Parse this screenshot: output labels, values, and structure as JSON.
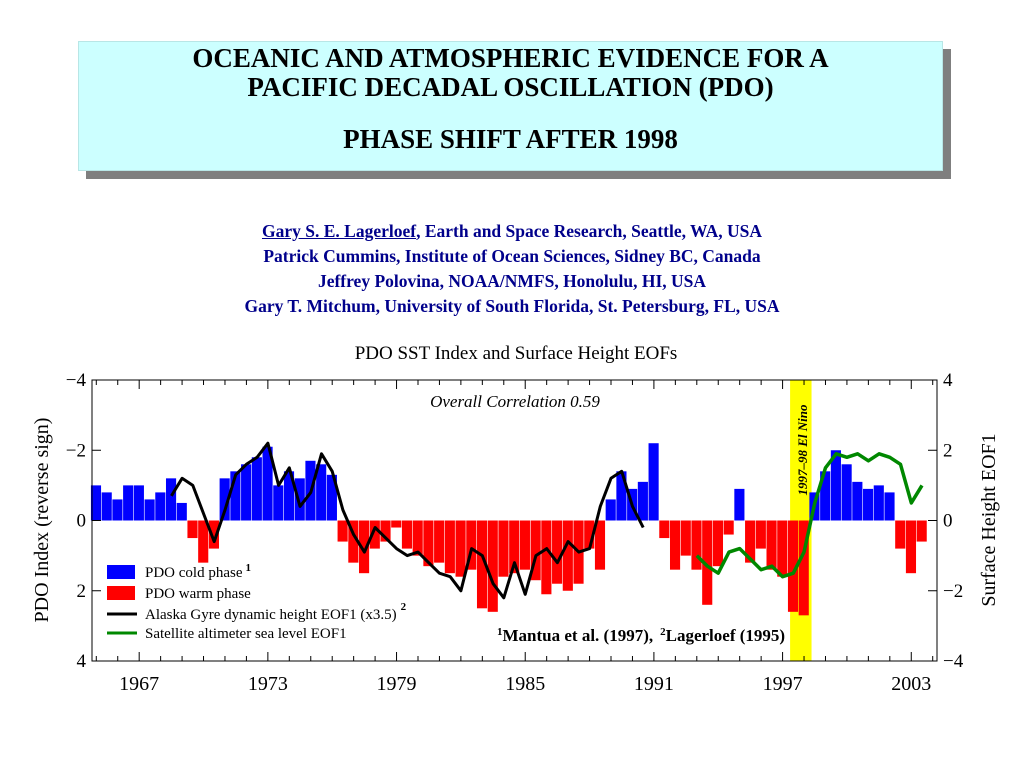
{
  "slide": {
    "title_line1": "OCEANIC AND ATMOSPHERIC EVIDENCE FOR A",
    "title_line2": "PACIFIC DECADAL OSCILLATION (PDO)",
    "subtitle": "PHASE SHIFT AFTER 1998",
    "authors": [
      {
        "name": "Gary S. E. Lagerloef",
        "affiliation": ", Earth and Space Research, Seattle, WA, USA"
      },
      {
        "name": "Patrick Cummins",
        "affiliation": ", Institute of Ocean Sciences, Sidney BC, Canada"
      },
      {
        "name": "Jeffrey Polovina",
        "affiliation": ", NOAA/NMFS, Honolulu, HI, USA"
      },
      {
        "name": "Gary T. Mitchum",
        "affiliation": ", University of South Florida, St. Petersburg, FL, USA"
      }
    ],
    "colors": {
      "title_bg": "#ccffff",
      "author_text": "#00008b",
      "cold": "#0000ff",
      "warm": "#ff0000",
      "gyre": "#000000",
      "altimeter": "#008800",
      "el_nino": "#ffff00"
    }
  },
  "chart_data": {
    "type": "bar",
    "title": "PDO SST Index and Surface Height EOFs",
    "ylabel_left": "PDO Index (reverse sign)",
    "ylabel_right": "Surface Height EOF1",
    "left_ticks": [
      "−4",
      "−2",
      "0",
      "2",
      "4"
    ],
    "right_ticks": [
      "4",
      "2",
      "0",
      "−2",
      "−4"
    ],
    "x_ticks": [
      "1967",
      "1973",
      "1979",
      "1985",
      "1991",
      "1997",
      "2003"
    ],
    "xlim": [
      1964.8,
      2004.2
    ],
    "ylim": [
      4,
      -4
    ],
    "annotation": "Overall Correlation 0.59",
    "el_nino": {
      "label": "1997–98 El Nino",
      "start": 1997.35,
      "end": 1998.35
    },
    "legend": {
      "position": "bottom-left",
      "entries": [
        {
          "label": "PDO cold phase",
          "sup": "1",
          "kind": "box",
          "color": "#0000ff"
        },
        {
          "label": "PDO warm phase",
          "sup": "",
          "kind": "box",
          "color": "#ff0000"
        },
        {
          "label": "Alaska Gyre dynamic height EOF1 (x3.5)",
          "sup": "2",
          "kind": "line",
          "color": "#000000"
        },
        {
          "label": "Satellite altimeter sea level EOF1",
          "sup": "",
          "kind": "line",
          "color": "#008800"
        }
      ]
    },
    "references": {
      "ref1_sup": "1",
      "ref1": "Mantua et al. (1997),",
      "ref2_sup": "2",
      "ref2": "Lagerloef (1995)"
    },
    "pdo_index": {
      "x": [
        1965.0,
        1965.5,
        1966.0,
        1966.5,
        1967.0,
        1967.5,
        1968.0,
        1968.5,
        1969.0,
        1969.5,
        1970.0,
        1970.5,
        1971.0,
        1971.5,
        1972.0,
        1972.5,
        1973.0,
        1973.5,
        1974.0,
        1974.5,
        1975.0,
        1975.5,
        1976.0,
        1976.5,
        1977.0,
        1977.5,
        1978.0,
        1978.5,
        1979.0,
        1979.5,
        1980.0,
        1980.5,
        1981.0,
        1981.5,
        1982.0,
        1982.5,
        1983.0,
        1983.5,
        1984.0,
        1984.5,
        1985.0,
        1985.5,
        1986.0,
        1986.5,
        1987.0,
        1987.5,
        1988.0,
        1988.5,
        1989.0,
        1989.5,
        1990.0,
        1990.5,
        1991.0,
        1991.5,
        1992.0,
        1992.5,
        1993.0,
        1993.5,
        1994.0,
        1994.5,
        1995.0,
        1995.5,
        1996.0,
        1996.5,
        1997.0,
        1997.5,
        1998.0,
        1998.5,
        1999.0,
        1999.5,
        2000.0,
        2000.5,
        2001.0,
        2001.5,
        2002.0,
        2002.5,
        2003.0,
        2003.5
      ],
      "y": [
        -1.0,
        -0.8,
        -0.6,
        -1.0,
        -1.0,
        -0.6,
        -0.8,
        -1.2,
        -0.5,
        0.5,
        1.2,
        0.8,
        -1.2,
        -1.4,
        -1.6,
        -1.8,
        -2.1,
        -1.0,
        -1.4,
        -1.2,
        -1.7,
        -1.6,
        -1.3,
        0.6,
        1.2,
        1.5,
        0.8,
        0.6,
        0.2,
        0.8,
        1.0,
        1.3,
        1.2,
        1.5,
        1.6,
        1.4,
        2.5,
        2.6,
        1.6,
        1.5,
        1.4,
        1.7,
        2.1,
        1.8,
        2.0,
        1.8,
        0.8,
        1.4,
        -0.6,
        -1.4,
        -0.9,
        -1.1,
        -2.2,
        0.5,
        1.4,
        1.0,
        1.4,
        2.4,
        1.3,
        0.4,
        -0.9,
        1.2,
        0.8,
        1.4,
        1.6,
        2.6,
        2.7,
        -0.8,
        -1.4,
        -2.0,
        -1.6,
        -1.1,
        -0.9,
        -1.0,
        -0.8,
        0.8,
        1.5,
        0.6
      ]
    },
    "alaska_gyre_eof1": {
      "x": [
        1968.5,
        1969.0,
        1969.5,
        1970.0,
        1970.5,
        1971.0,
        1971.5,
        1972.0,
        1972.5,
        1973.0,
        1973.5,
        1974.0,
        1974.5,
        1975.0,
        1975.5,
        1976.0,
        1976.5,
        1977.0,
        1977.5,
        1978.0,
        1978.5,
        1979.0,
        1979.5,
        1980.0,
        1980.5,
        1981.0,
        1981.5,
        1982.0,
        1982.5,
        1983.0,
        1983.5,
        1984.0,
        1984.5,
        1985.0,
        1985.5,
        1986.0,
        1986.5,
        1987.0,
        1987.5,
        1988.0,
        1988.5,
        1989.0,
        1989.5,
        1990.0,
        1990.5
      ],
      "y": [
        -0.7,
        -1.2,
        -1.0,
        -0.2,
        0.6,
        -0.3,
        -1.3,
        -1.6,
        -1.8,
        -2.2,
        -1.0,
        -1.5,
        -0.4,
        -0.8,
        -1.9,
        -1.4,
        -0.3,
        0.4,
        0.9,
        0.2,
        0.5,
        0.8,
        1.0,
        0.9,
        1.2,
        1.5,
        1.6,
        2.0,
        0.8,
        1.0,
        1.8,
        2.2,
        1.2,
        2.1,
        1.0,
        0.8,
        1.2,
        0.6,
        0.9,
        0.8,
        -0.4,
        -1.2,
        -1.4,
        -0.4,
        0.2
      ]
    },
    "altimeter_eof1": {
      "x": [
        1993.0,
        1993.5,
        1994.0,
        1994.5,
        1995.0,
        1995.5,
        1996.0,
        1996.5,
        1997.0,
        1997.5,
        1998.0,
        1998.5,
        1999.0,
        1999.5,
        2000.0,
        2000.5,
        2001.0,
        2001.5,
        2002.0,
        2002.5,
        2003.0,
        2003.5
      ],
      "y": [
        1.0,
        1.3,
        1.5,
        0.9,
        0.8,
        1.1,
        1.4,
        1.3,
        1.6,
        1.5,
        0.9,
        -0.5,
        -1.5,
        -1.9,
        -1.8,
        -1.9,
        -1.7,
        -1.9,
        -1.8,
        -1.6,
        -0.5,
        -1.0
      ]
    }
  }
}
